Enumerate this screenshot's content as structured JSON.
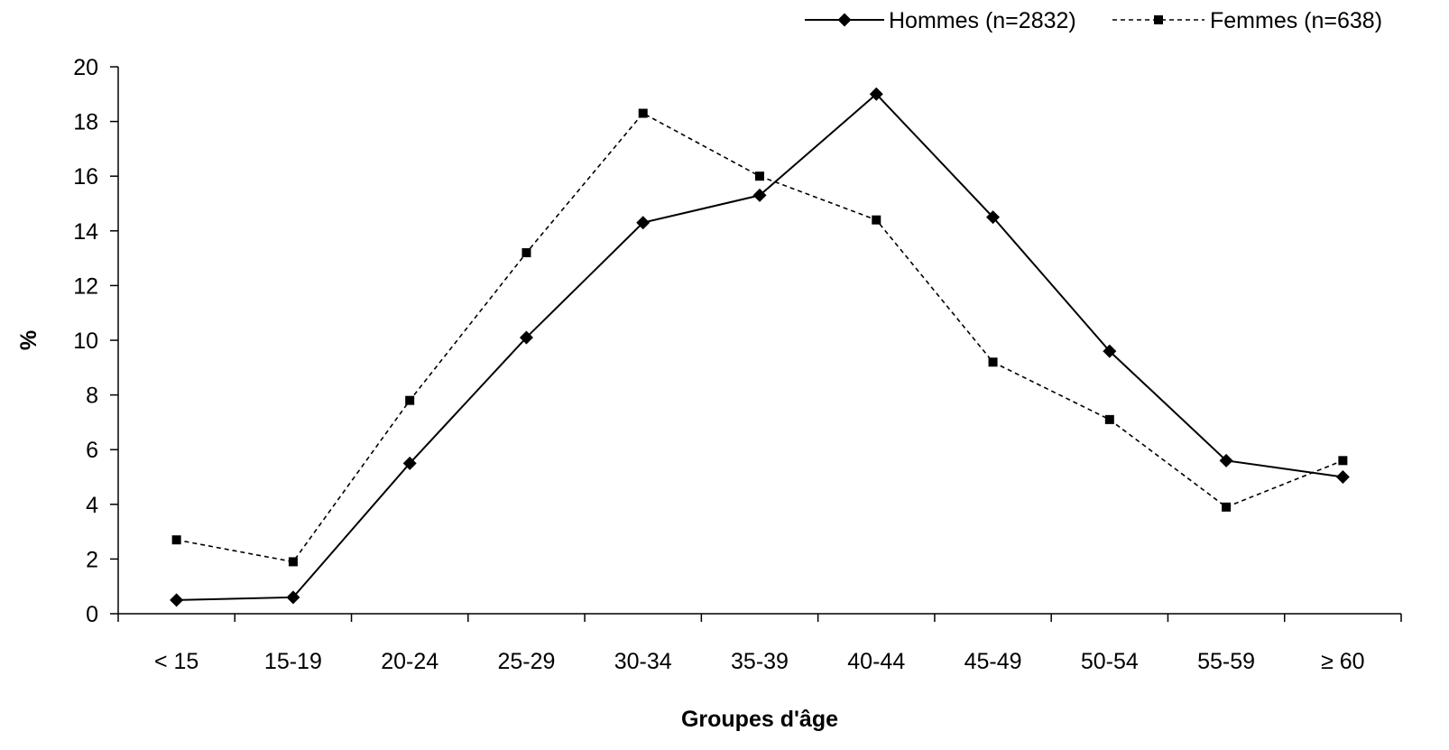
{
  "chart_data": {
    "type": "line",
    "title": "",
    "xlabel": "Groupes d'âge",
    "ylabel": "%",
    "categories": [
      "< 15",
      "15-19",
      "20-24",
      "25-29",
      "30-34",
      "35-39",
      "40-44",
      "45-49",
      "50-54",
      "55-59",
      "≥ 60"
    ],
    "ylim": [
      0,
      20
    ],
    "yticks": [
      0,
      2,
      4,
      6,
      8,
      10,
      12,
      14,
      16,
      18,
      20
    ],
    "grid": false,
    "legend_position": "top-right",
    "series": [
      {
        "name": "Hommes (n=2832)",
        "style": "solid",
        "marker": "diamond",
        "values": [
          0.5,
          0.6,
          5.5,
          10.1,
          14.3,
          15.3,
          19.0,
          14.5,
          9.6,
          5.6,
          5.0
        ]
      },
      {
        "name": "Femmes (n=638)",
        "style": "dashed",
        "marker": "square",
        "values": [
          2.7,
          1.9,
          7.8,
          13.2,
          18.3,
          16.0,
          14.4,
          9.2,
          7.1,
          3.9,
          5.6
        ]
      }
    ]
  }
}
